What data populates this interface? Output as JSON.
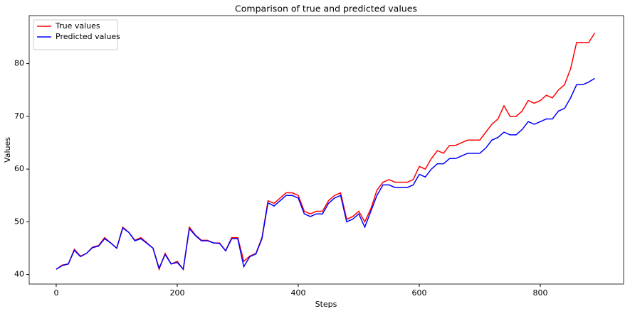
{
  "chart_data": {
    "type": "line",
    "title": "Comparison of true and predicted values",
    "x_label": "Steps",
    "y_label": "Values",
    "x": [
      0,
      10,
      20,
      30,
      40,
      50,
      60,
      70,
      80,
      90,
      100,
      110,
      120,
      130,
      140,
      150,
      160,
      170,
      180,
      190,
      200,
      210,
      220,
      230,
      240,
      250,
      260,
      270,
      280,
      290,
      300,
      310,
      320,
      330,
      340,
      350,
      360,
      370,
      380,
      390,
      400,
      410,
      420,
      430,
      440,
      450,
      460,
      470,
      480,
      490,
      500,
      510,
      520,
      530,
      540,
      550,
      560,
      570,
      580,
      590,
      600,
      610,
      620,
      630,
      640,
      650,
      660,
      670,
      680,
      690,
      700,
      710,
      720,
      730,
      740,
      750,
      760,
      770,
      780,
      790,
      800,
      810,
      820,
      830,
      840,
      850,
      860,
      870,
      880,
      890
    ],
    "series": [
      {
        "name": "True values",
        "color": "#ff0000",
        "values": [
          41,
          41.8,
          42,
          44.8,
          43.5,
          44,
          45.2,
          45.5,
          47,
          46,
          45,
          49,
          48,
          46.5,
          47,
          46,
          45,
          41,
          44,
          42,
          42.5,
          41,
          49,
          47.5,
          46.5,
          46.5,
          46,
          46,
          44.5,
          47,
          47,
          42.5,
          43.5,
          44,
          47,
          54,
          53.5,
          54.5,
          55.5,
          55.5,
          55,
          52,
          51.5,
          52,
          52,
          54,
          55,
          55.5,
          50.5,
          51,
          52,
          50,
          52.5,
          56,
          57.5,
          58,
          57.5,
          57.5,
          57.5,
          58,
          60.5,
          60,
          62,
          63.5,
          63,
          64.5,
          64.5,
          65,
          65.5,
          65.5,
          65.5,
          67,
          68.5,
          69.5,
          72,
          70,
          70,
          71,
          73,
          72.5,
          73,
          74,
          73.5,
          75,
          76,
          79,
          84,
          84,
          84,
          85.8
        ]
      },
      {
        "name": "Predicted values",
        "color": "#0000ff",
        "values": [
          41,
          41.7,
          42,
          44.6,
          43.4,
          44,
          45.1,
          45.4,
          46.8,
          46,
          45,
          48.8,
          48,
          46.4,
          46.8,
          45.9,
          45,
          41.2,
          43.8,
          42,
          42.3,
          41,
          48.7,
          47.4,
          46.4,
          46.4,
          46,
          45.9,
          44.5,
          46.8,
          46.8,
          41.5,
          43.4,
          43.9,
          46.8,
          53.6,
          53,
          54,
          55,
          55,
          54.5,
          51.5,
          51,
          51.5,
          51.5,
          53.5,
          54.5,
          55,
          50,
          50.5,
          51.5,
          49,
          52,
          55,
          57,
          57,
          56.5,
          56.5,
          56.5,
          57,
          59,
          58.5,
          60,
          61,
          61,
          62,
          62,
          62.5,
          63,
          63,
          63,
          64,
          65.5,
          66,
          67,
          66.5,
          66.5,
          67.5,
          69,
          68.5,
          69,
          69.5,
          69.5,
          71,
          71.5,
          73.5,
          76,
          76,
          76.5,
          77.2
        ]
      }
    ],
    "xlim": [
      -44.65,
      937.65
    ],
    "ylim": [
      38.2,
      89.1
    ],
    "xticks": [
      0,
      200,
      400,
      600,
      800
    ],
    "yticks": [
      40,
      50,
      60,
      70,
      80
    ],
    "legend": "upper left"
  }
}
